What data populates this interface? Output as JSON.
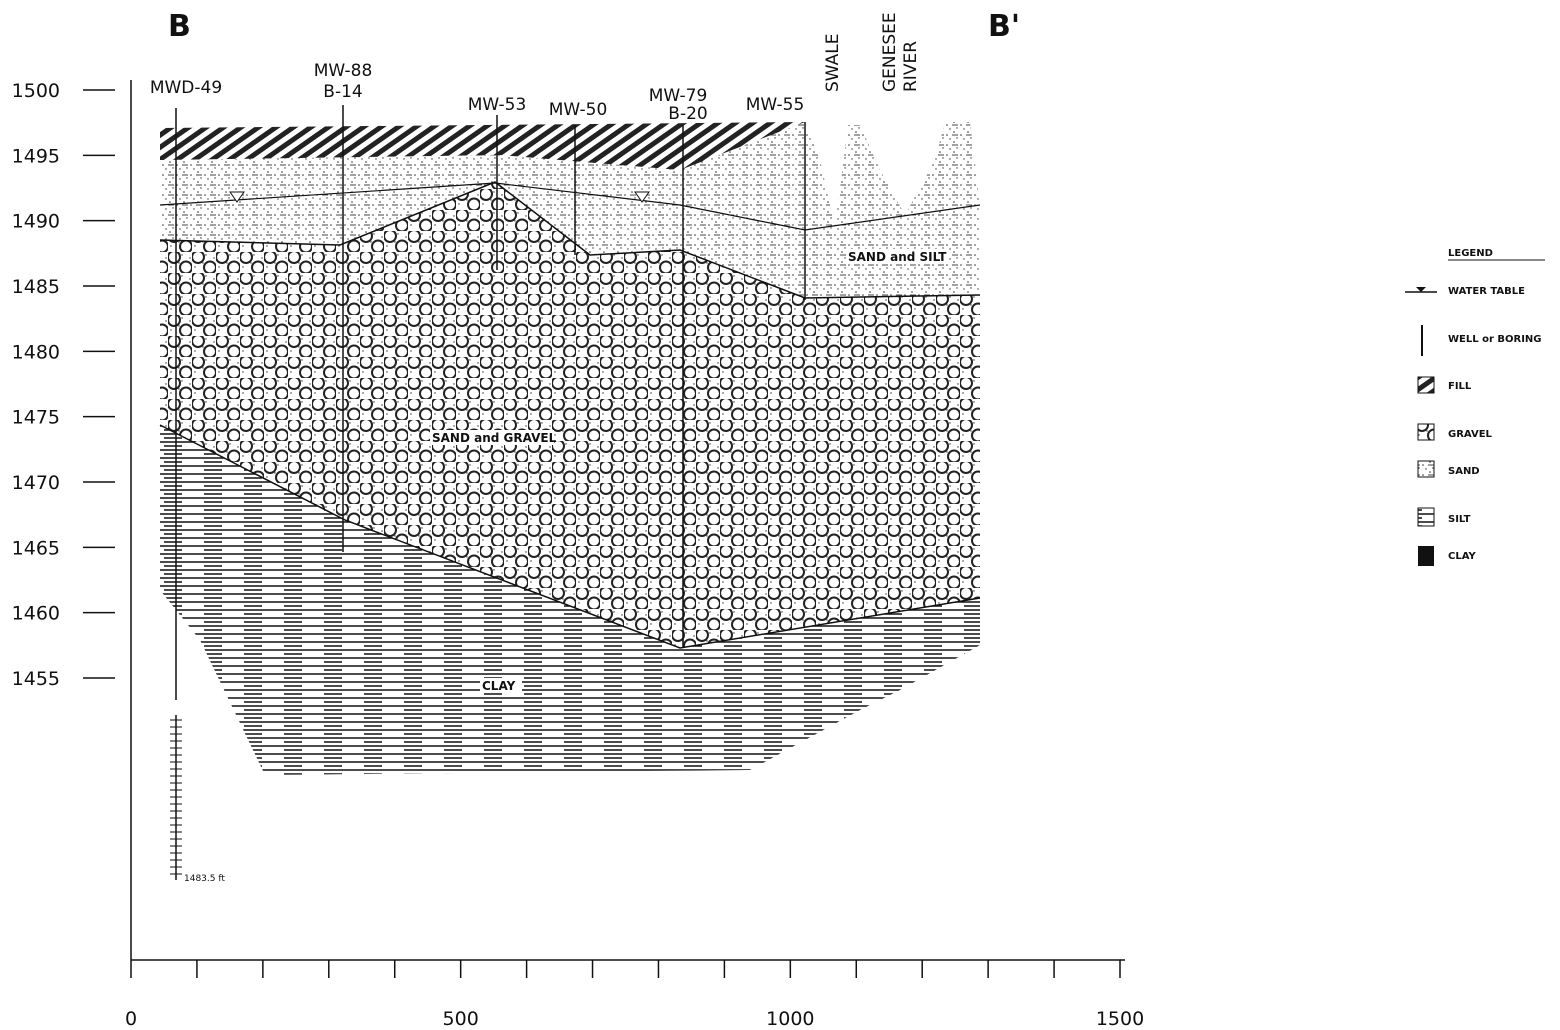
{
  "section": {
    "start_label": "B",
    "end_label": "B'"
  },
  "y_axis": {
    "ticks": [
      1500,
      1495,
      1490,
      1485,
      1480,
      1475,
      1470,
      1465,
      1460,
      1455
    ]
  },
  "x_axis": {
    "ticks": [
      0,
      500,
      1000,
      1500
    ]
  },
  "wells": [
    {
      "label": "MWD-49"
    },
    {
      "label": "MW-88",
      "sublabel": "B-14"
    },
    {
      "label": "MW-53"
    },
    {
      "label": "MW-50"
    },
    {
      "label": "MW-79",
      "sublabel": "B-20"
    },
    {
      "label": "MW-55"
    }
  ],
  "features": {
    "swale": "SWALE",
    "river": [
      "GENESEE",
      "RIVER"
    ]
  },
  "units": {
    "sand_silt": "SAND and SILT",
    "sand_gravel": "SAND and GRAVEL",
    "clay": "CLAY"
  },
  "depth_note": "1483.5 ft",
  "legend": {
    "title": "LEGEND",
    "items": [
      "WATER TABLE",
      "WELL or BORING",
      "FILL",
      "GRAVEL",
      "SAND",
      "SILT",
      "CLAY"
    ]
  }
}
